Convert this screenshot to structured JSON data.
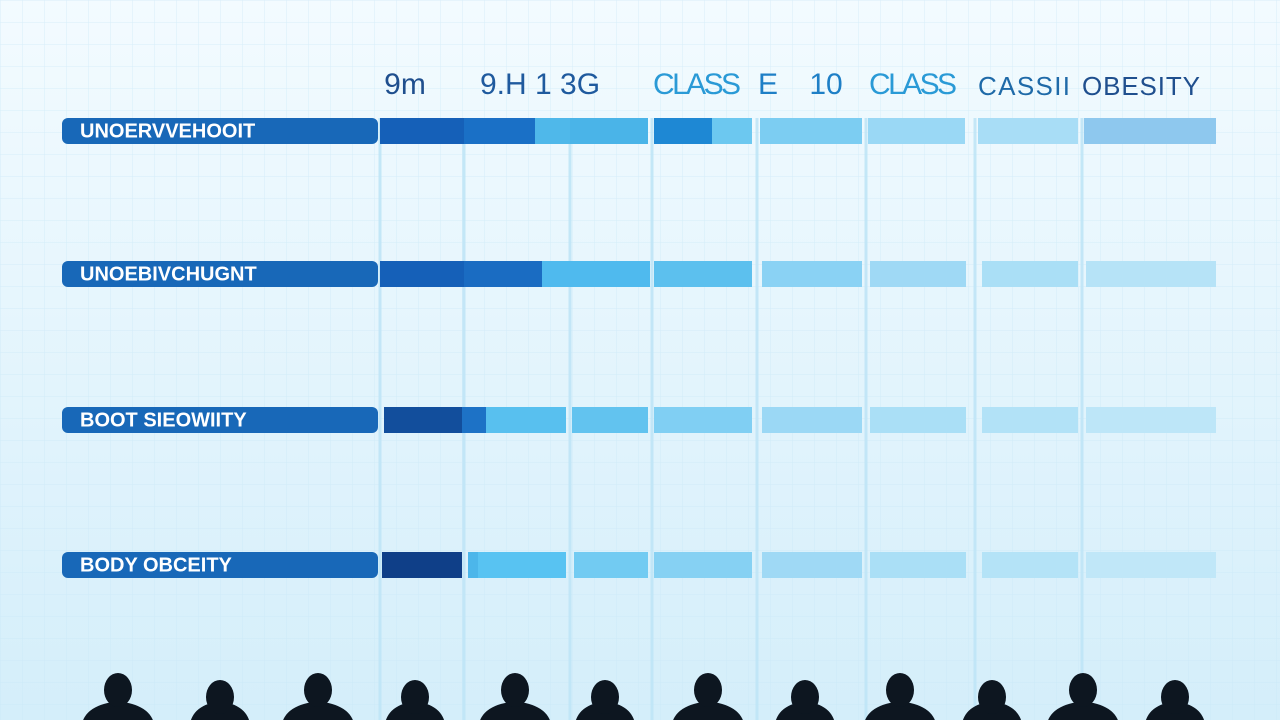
{
  "header": {
    "columns": [
      "9m",
      "9.H 1 3G",
      "CLASS",
      "E",
      "10",
      "CLASS",
      "CASSII",
      "OBESITY"
    ]
  },
  "rows": [
    {
      "label": "UNOERVVEHOOIT"
    },
    {
      "label": "UNOEBIVCHUGNT"
    },
    {
      "label": "BOOT SIEOWIITY"
    },
    {
      "label": "BODY OBCEITY"
    }
  ]
}
